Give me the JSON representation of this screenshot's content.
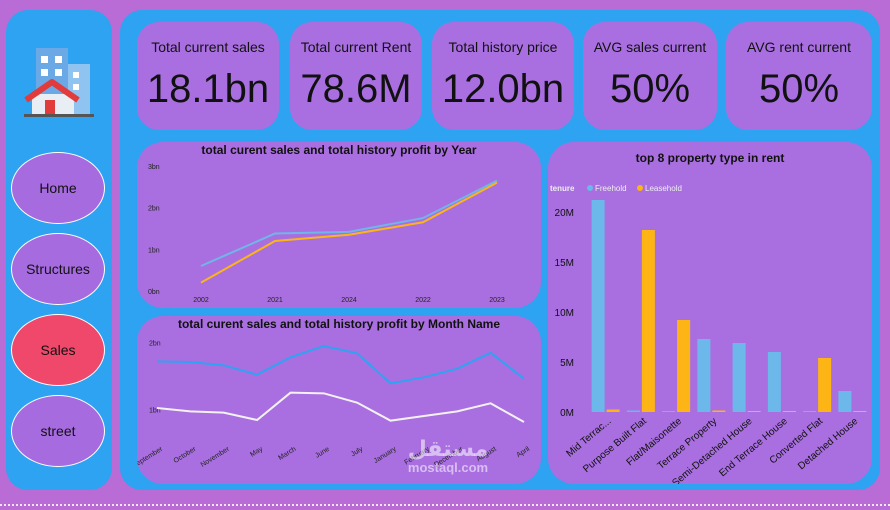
{
  "sidebar": {
    "nav": [
      {
        "label": "Home",
        "active": false
      },
      {
        "label": "Structures",
        "active": false
      },
      {
        "label": "Sales",
        "active": true
      },
      {
        "label": "street",
        "active": false
      }
    ]
  },
  "kpis": [
    {
      "label": "Total current sales",
      "value": "18.1bn"
    },
    {
      "label": "Total current Rent",
      "value": "78.6M"
    },
    {
      "label": "Total history price",
      "value": "12.0bn"
    },
    {
      "label": "AVG sales current",
      "value": "50%"
    },
    {
      "label": "AVG rent current",
      "value": "50%"
    }
  ],
  "colors": {
    "freehold": "#6cb8ea",
    "leasehold": "#fdb515",
    "series_current": "#70b6e6",
    "series_history": "#fdb515",
    "month_current": "#2ea3f2",
    "month_history": "#f2f2f2",
    "active_nav": "#f0486a"
  },
  "watermark": {
    "arabic": "مستقل",
    "latin": "mostaql.com"
  },
  "chart_data": [
    {
      "type": "line",
      "title": "total curent sales and total history profit by Year",
      "categories": [
        "2002",
        "2021",
        "2024",
        "2022",
        "2023"
      ],
      "y_ticks": [
        "0bn",
        "1bn",
        "2bn",
        "3bn"
      ],
      "ylim": [
        0,
        3
      ],
      "grid": false,
      "series": [
        {
          "values": [
            0.6,
            1.38,
            1.42,
            1.75,
            2.65
          ]
        },
        {
          "values": [
            0.2,
            1.2,
            1.35,
            1.65,
            2.6
          ]
        }
      ]
    },
    {
      "type": "line",
      "title": "total curent sales and total history profit by Month Name",
      "categories": [
        "September",
        "October",
        "November",
        "May",
        "March",
        "June",
        "July",
        "January",
        "February",
        "December",
        "August",
        "April"
      ],
      "y_ticks": [
        "1bn",
        "2bn"
      ],
      "ylim": [
        0.6,
        2.1
      ],
      "grid": false,
      "series": [
        {
          "values": [
            1.72,
            1.71,
            1.66,
            1.52,
            1.78,
            1.95,
            1.84,
            1.39,
            1.48,
            1.61,
            1.85,
            1.46
          ]
        },
        {
          "values": [
            1.02,
            0.97,
            0.95,
            0.84,
            1.25,
            1.24,
            1.1,
            0.83,
            0.9,
            0.97,
            1.09,
            0.81
          ]
        }
      ]
    },
    {
      "type": "bar",
      "title": "top 8 property type in rent",
      "legend_title": "tenure",
      "legend_position": "top-left",
      "categories": [
        "Mid Terrac...",
        "Purpose Built Flat",
        "Flat/Maisonette",
        "Terrace Property",
        "Semi-Detached House",
        "End Terrace House",
        "Converted Flat",
        "Detached House"
      ],
      "y_ticks": [
        "0M",
        "5M",
        "10M",
        "15M",
        "20M"
      ],
      "ylim": [
        0,
        23
      ],
      "series": [
        {
          "name": "Freehold",
          "values": [
            21.2,
            0.15,
            0.1,
            7.3,
            6.9,
            6.0,
            0.05,
            2.1
          ]
        },
        {
          "name": "Leasehold",
          "values": [
            0.25,
            18.2,
            9.2,
            0.15,
            0.1,
            0.05,
            5.4,
            0.05
          ]
        }
      ]
    }
  ]
}
